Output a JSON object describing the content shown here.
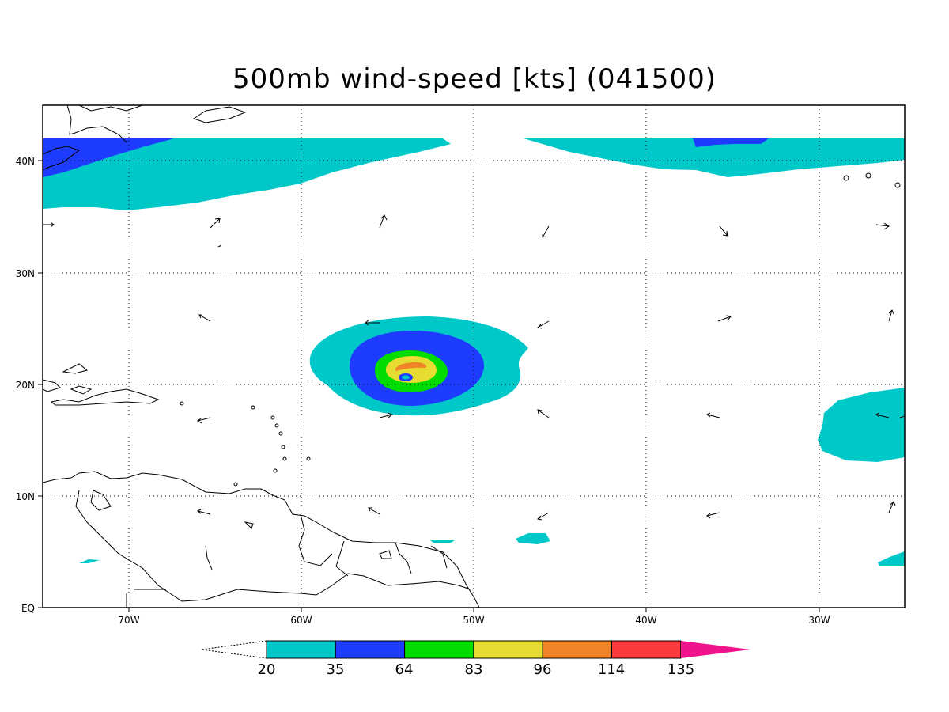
{
  "title": "500mb wind-speed [kts] (041500)",
  "axes": {
    "lat_labels": [
      "EQ",
      "10N",
      "20N",
      "30N",
      "40N"
    ],
    "lon_labels": [
      "70W",
      "60W",
      "50W",
      "40W",
      "30W"
    ]
  },
  "colorbar": {
    "labels": [
      "20",
      "35",
      "64",
      "83",
      "96",
      "114",
      "135"
    ],
    "colors": [
      "#00c8c8",
      "#1e3cff",
      "#00dc00",
      "#e6dc32",
      "#f08228",
      "#fa3c3c",
      "#f0148c"
    ],
    "open_low_end": true,
    "open_high_end": true
  },
  "colors": {
    "level_20": "#00c8c8",
    "level_35": "#1e3cff",
    "level_64": "#00dc00",
    "level_83": "#e6dc32",
    "level_96": "#f08228",
    "level_114": "#fa3c3c",
    "level_135": "#f0148c",
    "coastline": "#000000",
    "grid": "#000000"
  }
}
